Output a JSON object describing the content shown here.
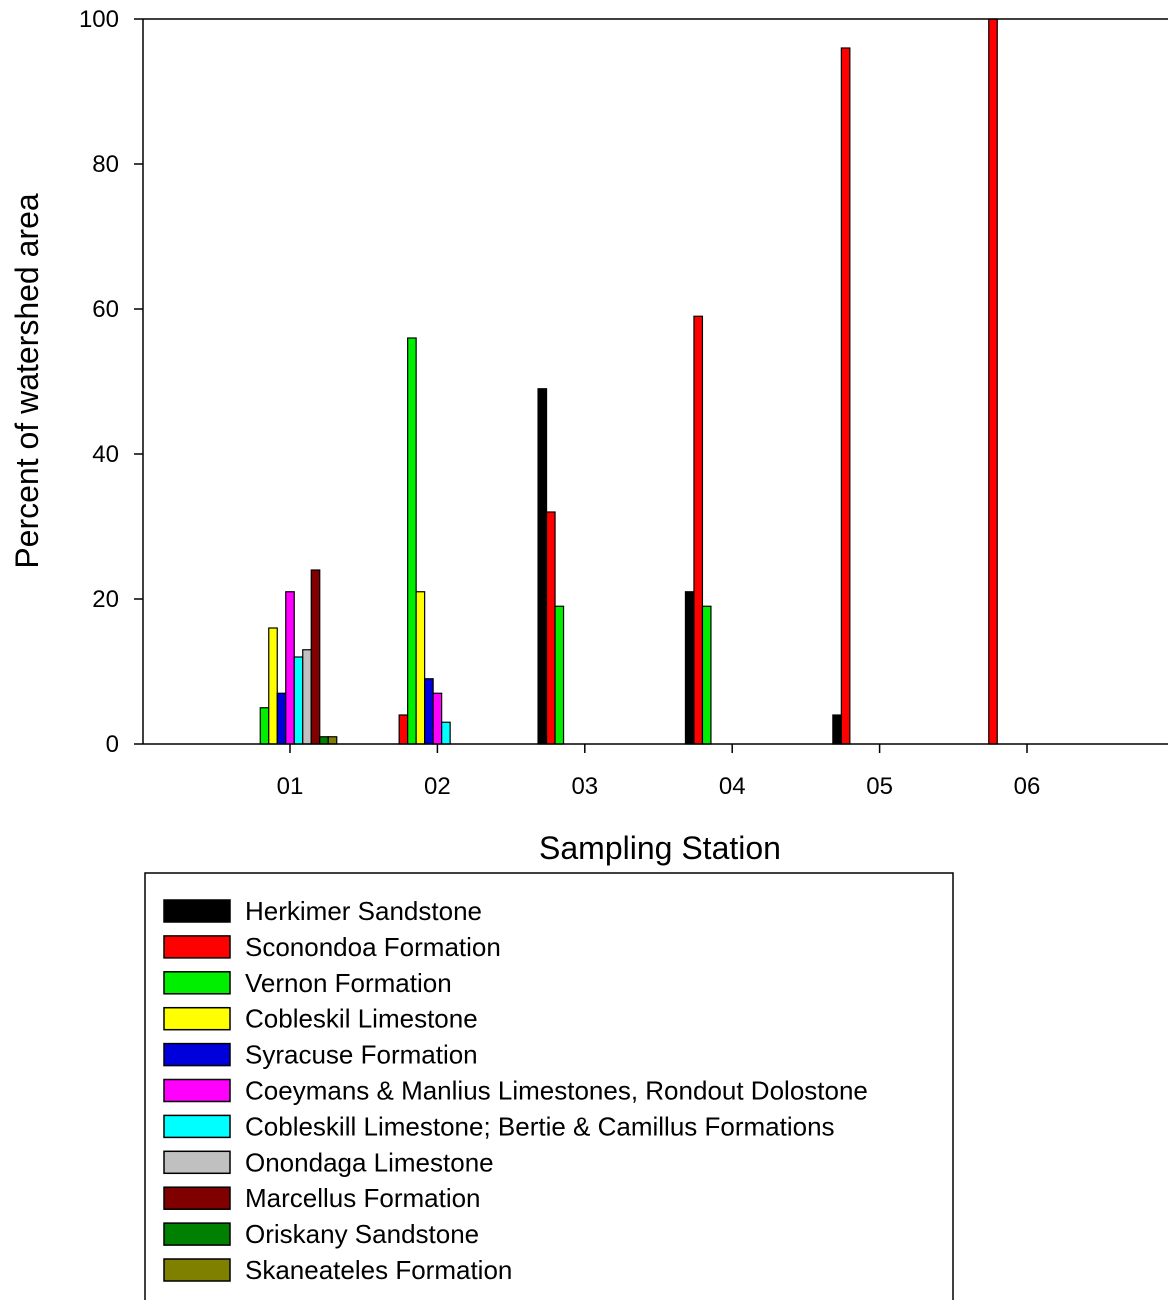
{
  "chart_data": {
    "type": "bar",
    "title": "",
    "xlabel": "Sampling Station",
    "ylabel": "Percent of watershed area",
    "ylim": [
      0,
      100
    ],
    "yticks": [
      0,
      20,
      40,
      60,
      80,
      100
    ],
    "grid": false,
    "legend_position": "bottom-left",
    "categories": [
      "01",
      "02",
      "03",
      "04",
      "05",
      "06"
    ],
    "series": [
      {
        "name": "Herkimer Sandstone",
        "color": "#000000",
        "values": [
          0,
          0,
          49,
          21,
          4,
          0
        ]
      },
      {
        "name": "Sconondoa Formation",
        "color": "#ff0000",
        "values": [
          0,
          4,
          32,
          59,
          96,
          100
        ]
      },
      {
        "name": "Vernon Formation",
        "color": "#00ee00",
        "values": [
          5,
          56,
          19,
          19,
          0,
          0
        ]
      },
      {
        "name": "Cobleskil Limestone",
        "color": "#ffff00",
        "values": [
          16,
          21,
          0,
          0,
          0,
          0
        ]
      },
      {
        "name": "Syracuse Formation",
        "color": "#0000dd",
        "values": [
          7,
          9,
          0,
          0,
          0,
          0
        ]
      },
      {
        "name": "Coeymans & Manlius Limestones, Rondout Dolostone",
        "color": "#ff00ff",
        "values": [
          21,
          7,
          0,
          0,
          0,
          0
        ]
      },
      {
        "name": "Cobleskill Limestone; Bertie & Camillus Formations",
        "color": "#00ffff",
        "values": [
          12,
          3,
          0,
          0,
          0,
          0
        ]
      },
      {
        "name": "Onondaga Limestone",
        "color": "#c0c0c0",
        "values": [
          13,
          0,
          0,
          0,
          0,
          0
        ]
      },
      {
        "name": "Marcellus Formation",
        "color": "#800000",
        "values": [
          24,
          0,
          0,
          0,
          0,
          0
        ]
      },
      {
        "name": "Oriskany Sandstone",
        "color": "#008000",
        "values": [
          1,
          0,
          0,
          0,
          0,
          0
        ]
      },
      {
        "name": "Skaneateles Formation",
        "color": "#808000",
        "values": [
          1,
          0,
          0,
          0,
          0,
          0
        ]
      }
    ]
  }
}
